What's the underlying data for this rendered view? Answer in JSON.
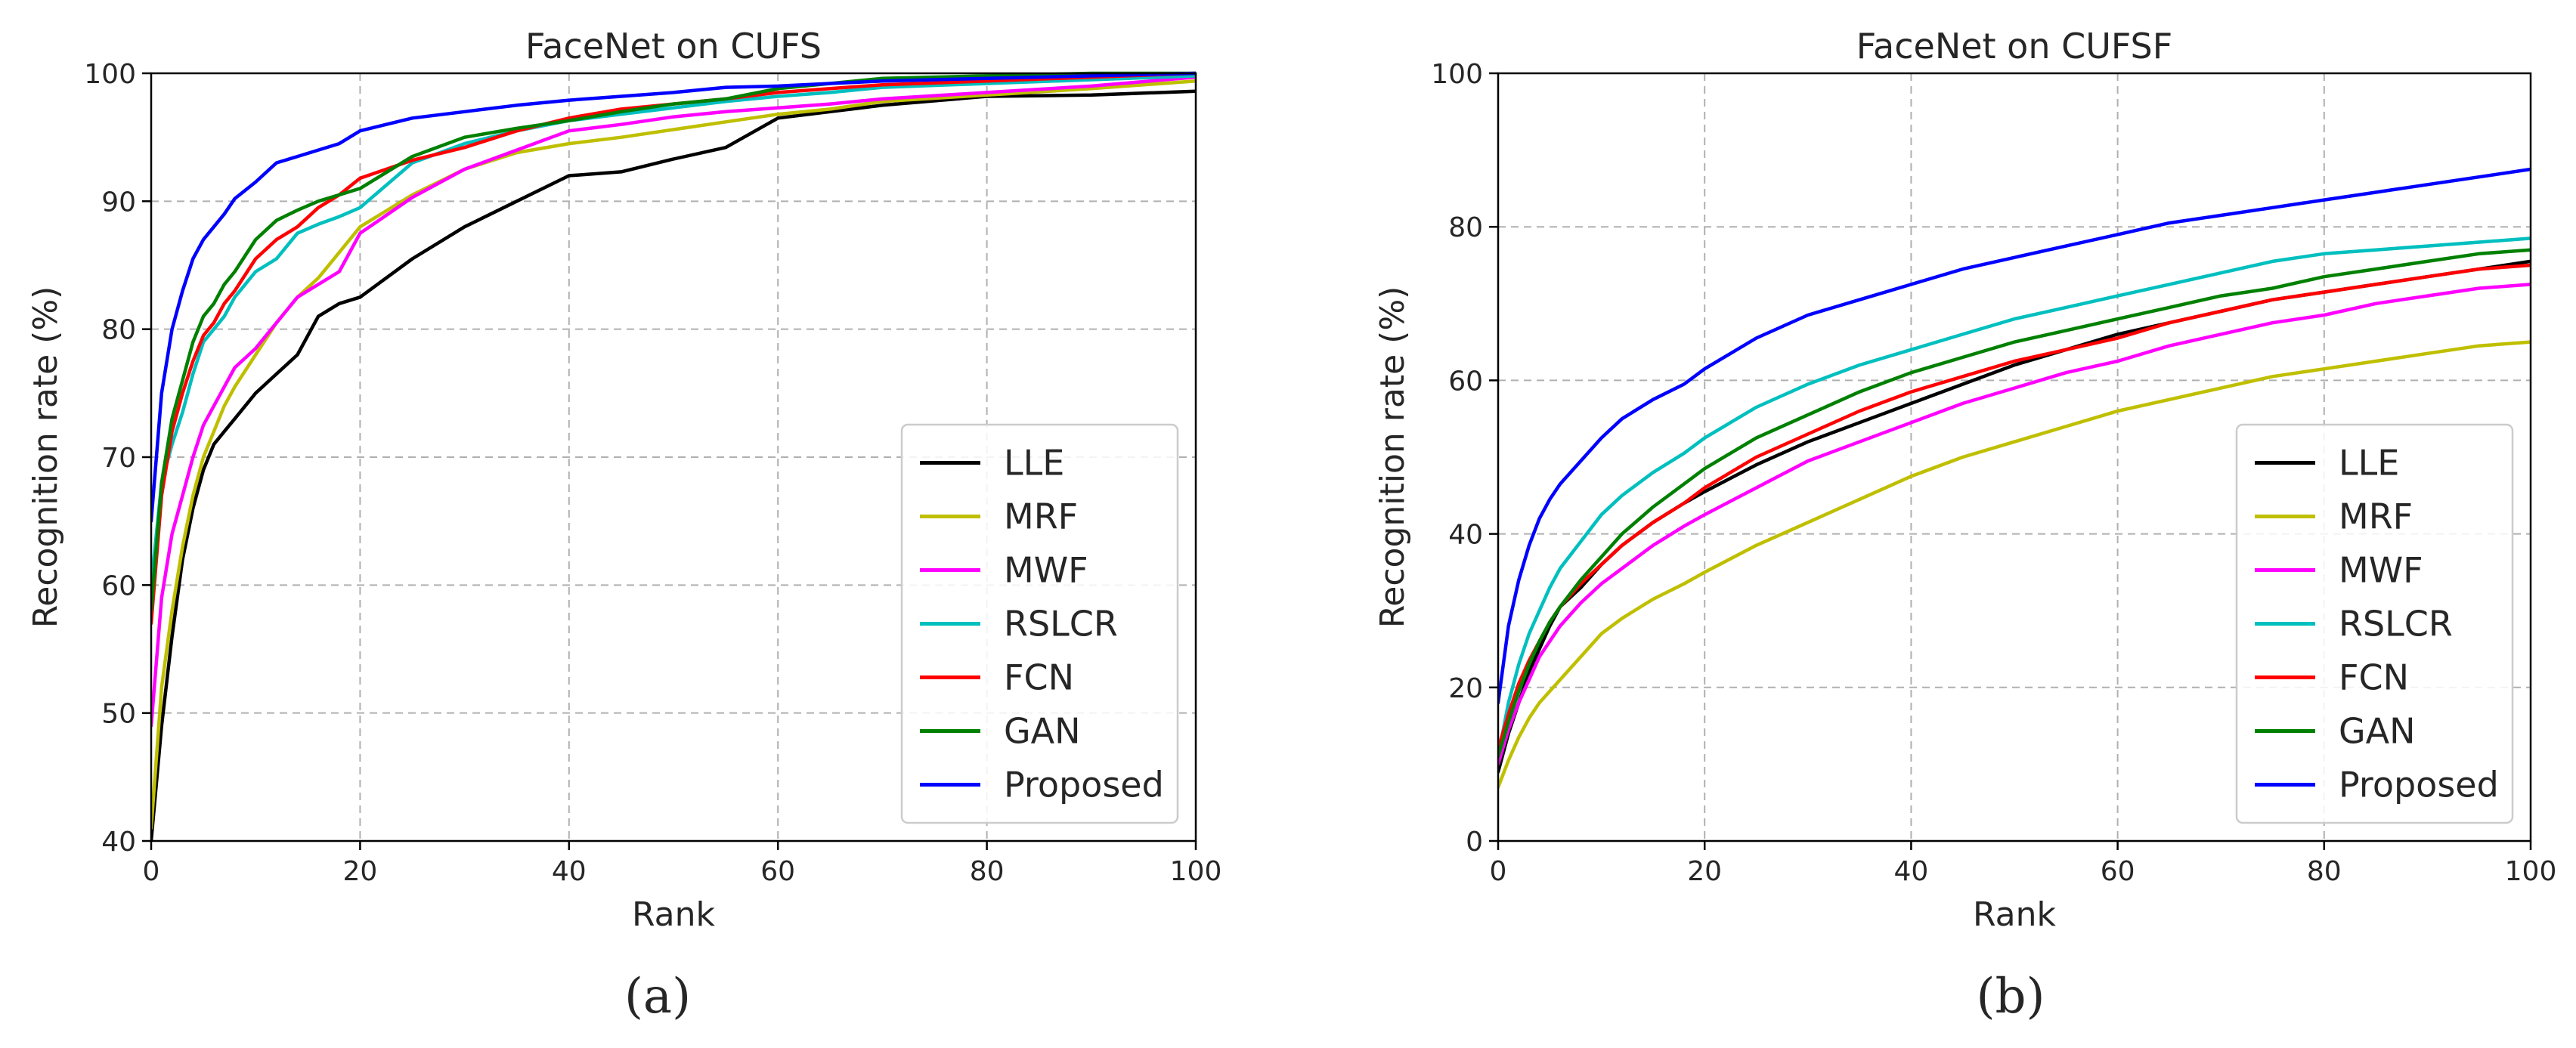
{
  "chart_data": [
    {
      "type": "line",
      "title": "FaceNet on CUFS",
      "xlabel": "Rank",
      "ylabel": "Recognition rate (%)",
      "caption": "(a)",
      "xlim": [
        0,
        100
      ],
      "ylim": [
        40,
        100
      ],
      "xticks": [
        0,
        20,
        40,
        60,
        80,
        100
      ],
      "yticks": [
        40,
        50,
        60,
        70,
        80,
        90,
        100
      ],
      "grid": true,
      "legend_position": "bottom-right",
      "x": [
        0,
        1,
        2,
        3,
        4,
        5,
        6,
        7,
        8,
        10,
        12,
        14,
        16,
        18,
        20,
        25,
        30,
        35,
        40,
        45,
        50,
        55,
        60,
        65,
        70,
        80,
        90,
        100
      ],
      "series": [
        {
          "name": "LLE",
          "color": "#000000",
          "values": [
            40,
            49,
            56,
            62,
            66,
            69,
            71,
            72,
            73,
            75,
            76.5,
            78,
            81,
            82,
            82.5,
            85.5,
            88,
            90,
            92,
            92.3,
            93.3,
            94.2,
            96.5,
            97,
            97.5,
            98.2,
            98.3,
            98.6
          ]
        },
        {
          "name": "MRF",
          "color": "#bfbf00",
          "values": [
            41,
            52,
            58,
            63,
            67,
            70,
            72,
            74,
            75.5,
            78,
            80.5,
            82.5,
            84,
            86,
            88,
            90.5,
            92.5,
            93.8,
            94.5,
            95,
            95.6,
            96.2,
            96.8,
            97.2,
            97.8,
            98.3,
            98.8,
            99.4
          ]
        },
        {
          "name": "MWF",
          "color": "#ff00ff",
          "values": [
            49,
            59,
            64,
            67,
            70,
            72.5,
            74,
            75.5,
            77,
            78.5,
            80.5,
            82.5,
            83.5,
            84.5,
            87.5,
            90.3,
            92.5,
            94,
            95.5,
            96,
            96.6,
            97,
            97.3,
            97.6,
            98,
            98.5,
            99,
            99.7
          ]
        },
        {
          "name": "RSLCR",
          "color": "#00bfbf",
          "values": [
            60,
            68,
            71,
            73.5,
            76.5,
            79,
            80,
            81,
            82.5,
            84.5,
            85.5,
            87.5,
            88.2,
            88.8,
            89.5,
            93,
            94.5,
            95.5,
            96.3,
            96.8,
            97.3,
            97.8,
            98.2,
            98.5,
            98.9,
            99.2,
            99.5,
            99.8
          ]
        },
        {
          "name": "FCN",
          "color": "#ff0000",
          "values": [
            57,
            67,
            72,
            75,
            77.5,
            79.5,
            80.5,
            82,
            83,
            85.5,
            87,
            88,
            89.5,
            90.5,
            91.8,
            93.2,
            94.2,
            95.5,
            96.5,
            97.2,
            97.6,
            98,
            98.5,
            98.8,
            99.1,
            99.4,
            99.7,
            100
          ]
        },
        {
          "name": "GAN",
          "color": "#008000",
          "values": [
            58,
            68,
            73,
            76,
            79,
            81,
            82,
            83.5,
            84.5,
            87,
            88.5,
            89.3,
            90,
            90.5,
            91,
            93.5,
            95,
            95.7,
            96.3,
            97,
            97.6,
            98,
            98.8,
            99.2,
            99.6,
            99.8,
            100,
            100
          ]
        },
        {
          "name": "Proposed",
          "color": "#0000ff",
          "values": [
            65,
            75,
            80,
            83,
            85.5,
            87,
            88,
            89,
            90.2,
            91.5,
            93,
            93.5,
            94,
            94.5,
            95.5,
            96.5,
            97,
            97.5,
            97.9,
            98.2,
            98.5,
            98.9,
            99,
            99.2,
            99.4,
            99.6,
            99.8,
            100
          ]
        }
      ]
    },
    {
      "type": "line",
      "title": "FaceNet on CUFSF",
      "xlabel": "Rank",
      "ylabel": "Recognition rate (%)",
      "caption": "(b)",
      "xlim": [
        0,
        100
      ],
      "ylim": [
        0,
        100
      ],
      "xticks": [
        0,
        20,
        40,
        60,
        80,
        100
      ],
      "yticks": [
        0,
        20,
        40,
        60,
        80,
        100
      ],
      "grid": true,
      "legend_position": "bottom-right",
      "x": [
        0,
        1,
        2,
        3,
        4,
        5,
        6,
        8,
        10,
        12,
        15,
        18,
        20,
        25,
        30,
        35,
        40,
        45,
        50,
        55,
        60,
        65,
        70,
        75,
        80,
        85,
        90,
        95,
        100
      ],
      "series": [
        {
          "name": "LLE",
          "color": "#000000",
          "values": [
            9,
            14,
            18,
            22,
            25,
            28,
            30.5,
            33,
            36,
            38.5,
            41.5,
            44,
            45.5,
            49,
            52,
            54.5,
            57,
            59.5,
            62,
            64,
            66,
            67.5,
            69,
            70.5,
            71.5,
            72.5,
            73.5,
            74.5,
            75.5
          ]
        },
        {
          "name": "MRF",
          "color": "#bfbf00",
          "values": [
            7,
            10.5,
            13.5,
            16,
            18,
            19.5,
            21,
            24,
            27,
            29,
            31.5,
            33.5,
            35,
            38.5,
            41.5,
            44.5,
            47.5,
            50,
            52,
            54,
            56,
            57.5,
            59,
            60.5,
            61.5,
            62.5,
            63.5,
            64.5,
            65
          ]
        },
        {
          "name": "MWF",
          "color": "#ff00ff",
          "values": [
            10,
            14.5,
            18,
            21,
            24,
            26,
            28,
            31,
            33.5,
            35.5,
            38.5,
            41,
            42.5,
            46,
            49.5,
            52,
            54.5,
            57,
            59,
            61,
            62.5,
            64.5,
            66,
            67.5,
            68.5,
            70,
            71,
            72,
            72.5
          ]
        },
        {
          "name": "RSLCR",
          "color": "#00bfbf",
          "values": [
            11,
            18,
            23,
            27,
            30,
            33,
            35.5,
            39,
            42.5,
            45,
            48,
            50.5,
            52.5,
            56.5,
            59.5,
            62,
            64,
            66,
            68,
            69.5,
            71,
            72.5,
            74,
            75.5,
            76.5,
            77,
            77.5,
            78,
            78.5
          ]
        },
        {
          "name": "FCN",
          "color": "#ff0000",
          "values": [
            12,
            16.5,
            20.5,
            23.5,
            26,
            28.5,
            30.5,
            33.5,
            36,
            38.5,
            41.5,
            44,
            46,
            50,
            53,
            56,
            58.5,
            60.5,
            62.5,
            64,
            65.5,
            67.5,
            69,
            70.5,
            71.5,
            72.5,
            73.5,
            74.5,
            75
          ]
        },
        {
          "name": "GAN",
          "color": "#008000",
          "values": [
            11,
            15.5,
            19.5,
            23,
            26,
            28.5,
            30.5,
            34,
            37,
            40,
            43.5,
            46.5,
            48.5,
            52.5,
            55.5,
            58.5,
            61,
            63,
            65,
            66.5,
            68,
            69.5,
            71,
            72,
            73.5,
            74.5,
            75.5,
            76.5,
            77
          ]
        },
        {
          "name": "Proposed",
          "color": "#0000ff",
          "values": [
            18,
            28,
            34,
            38.5,
            42,
            44.5,
            46.5,
            49.5,
            52.5,
            55,
            57.5,
            59.5,
            61.5,
            65.5,
            68.5,
            70.5,
            72.5,
            74.5,
            76,
            77.5,
            79,
            80.5,
            81.5,
            82.5,
            83.5,
            84.5,
            85.5,
            86.5,
            87.5
          ]
        }
      ]
    }
  ]
}
